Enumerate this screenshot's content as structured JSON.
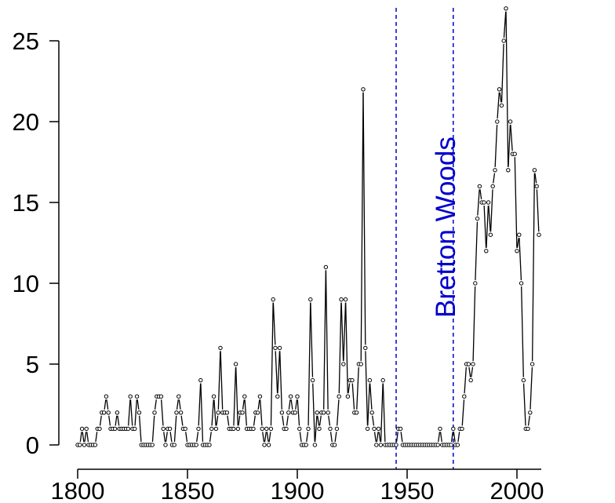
{
  "chart_data": {
    "type": "scatter",
    "title": "",
    "xlabel": "",
    "ylabel": "",
    "xlim": [
      1800,
      2010
    ],
    "ylim": [
      0,
      25
    ],
    "x_ticks": [
      "1800",
      "1850",
      "1900",
      "1950",
      "2000"
    ],
    "y_ticks": [
      "0",
      "5",
      "10",
      "15",
      "20",
      "25"
    ],
    "grid": false,
    "legend": "none",
    "marker_color": "#000000",
    "line_color": "#000000",
    "annotation": {
      "text": "Bretton Woods",
      "color": "#0000cc",
      "vlines": [
        1945,
        1971
      ]
    },
    "series": [
      {
        "x": [
          1800,
          1801,
          1802,
          1803,
          1804,
          1805,
          1806,
          1807,
          1808,
          1809,
          1810,
          1811,
          1812,
          1813,
          1814,
          1815,
          1816,
          1817,
          1818,
          1819,
          1820,
          1821,
          1822,
          1823,
          1824,
          1825,
          1826,
          1827,
          1828,
          1829,
          1830,
          1831,
          1832,
          1833,
          1834,
          1835,
          1836,
          1837,
          1838,
          1839,
          1840,
          1841,
          1842,
          1843,
          1844,
          1845,
          1846,
          1847,
          1848,
          1849,
          1850,
          1851,
          1852,
          1853,
          1854,
          1855,
          1856,
          1857,
          1858,
          1859,
          1860,
          1861,
          1862,
          1863,
          1864,
          1865,
          1866,
          1867,
          1868,
          1869,
          1870,
          1871,
          1872,
          1873,
          1874,
          1875,
          1876,
          1877,
          1878,
          1879,
          1880,
          1881,
          1882,
          1883,
          1884,
          1885,
          1886,
          1887,
          1888,
          1889,
          1890,
          1891,
          1892,
          1893,
          1894,
          1895,
          1896,
          1897,
          1898,
          1899,
          1900,
          1901,
          1902,
          1903,
          1904,
          1905,
          1906,
          1907,
          1908,
          1909,
          1910,
          1911,
          1912,
          1913,
          1914,
          1915,
          1916,
          1917,
          1918,
          1919,
          1920,
          1921,
          1922,
          1923,
          1924,
          1925,
          1926,
          1927,
          1928,
          1929,
          1930,
          1931,
          1932,
          1933,
          1934,
          1935,
          1936,
          1937,
          1938,
          1939,
          1940,
          1941,
          1942,
          1943,
          1944,
          1945,
          1946,
          1947,
          1948,
          1949,
          1950,
          1951,
          1952,
          1953,
          1954,
          1955,
          1956,
          1957,
          1958,
          1959,
          1960,
          1961,
          1962,
          1963,
          1964,
          1965,
          1966,
          1967,
          1968,
          1969,
          1970,
          1971,
          1972,
          1973,
          1974,
          1975,
          1976,
          1977,
          1978,
          1979,
          1980,
          1981,
          1982,
          1983,
          1984,
          1985,
          1986,
          1987,
          1988,
          1989,
          1990,
          1991,
          1992,
          1993,
          1994,
          1995,
          1996,
          1997,
          1998,
          1999,
          2000,
          2001,
          2002,
          2003,
          2004,
          2005,
          2006,
          2007,
          2008,
          2009,
          2010
        ],
        "y": [
          0,
          0,
          1,
          0,
          1,
          0,
          0,
          0,
          0,
          1,
          1,
          2,
          2,
          3,
          2,
          1,
          1,
          1,
          2,
          1,
          1,
          1,
          1,
          1,
          3,
          1,
          1,
          3,
          2,
          0,
          0,
          0,
          0,
          0,
          0,
          2,
          3,
          3,
          3,
          1,
          0,
          1,
          1,
          0,
          0,
          2,
          3,
          2,
          1,
          1,
          0,
          0,
          0,
          0,
          0,
          1,
          4,
          0,
          0,
          0,
          0,
          1,
          3,
          1,
          2,
          6,
          2,
          2,
          2,
          1,
          1,
          1,
          5,
          1,
          2,
          2,
          3,
          1,
          1,
          1,
          1,
          2,
          2,
          3,
          1,
          0,
          1,
          0,
          1,
          9,
          6,
          3,
          6,
          2,
          1,
          1,
          2,
          3,
          2,
          2,
          3,
          1,
          0,
          0,
          0,
          1,
          9,
          4,
          0,
          2,
          1,
          2,
          2,
          11,
          2,
          1,
          0,
          0,
          1,
          3,
          9,
          5,
          9,
          3,
          4,
          4,
          2,
          2,
          5,
          5,
          22,
          6,
          1,
          4,
          2,
          1,
          0,
          1,
          0,
          4,
          0,
          0,
          0,
          0,
          0,
          0,
          1,
          1,
          0,
          0,
          0,
          0,
          0,
          0,
          0,
          0,
          0,
          0,
          0,
          0,
          0,
          0,
          0,
          0,
          0,
          1,
          0,
          0,
          0,
          0,
          0,
          1,
          0,
          0,
          1,
          1,
          3,
          5,
          5,
          4,
          5,
          10,
          14,
          16,
          15,
          15,
          12,
          15,
          13,
          16,
          17,
          20,
          22,
          21,
          25,
          27,
          17,
          20,
          18,
          18,
          12,
          13,
          10,
          4,
          1,
          1,
          2,
          5,
          17,
          16,
          13
        ]
      }
    ]
  }
}
